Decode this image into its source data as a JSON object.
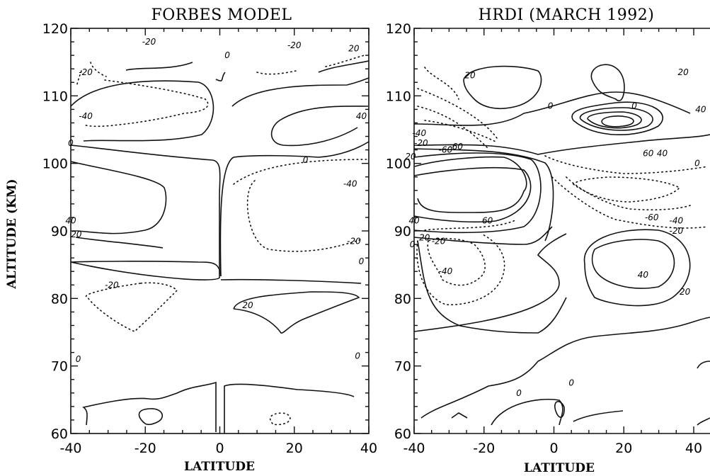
{
  "chart_data": [
    {
      "type": "contour",
      "title": "FORBES MODEL",
      "xlabel": "LATITUDE",
      "ylabel": "ALTITUDE (KM)",
      "xlim": [
        -40,
        40
      ],
      "ylim": [
        60,
        120
      ],
      "xticks": [
        "-40",
        "-20",
        "0",
        "20",
        "40"
      ],
      "yticks": [
        "60",
        "70",
        "80",
        "90",
        "100",
        "110",
        "120"
      ],
      "contour_labels": [
        {
          "text": "-20",
          "lat": -19,
          "alt": 118
        },
        {
          "text": "-20",
          "lat": -36,
          "alt": 113.5
        },
        {
          "text": "0",
          "lat": 2,
          "alt": 116
        },
        {
          "text": "-20",
          "lat": 20,
          "alt": 117.5
        },
        {
          "text": "20",
          "lat": 36,
          "alt": 117
        },
        {
          "text": "-40",
          "lat": -36,
          "alt": 107
        },
        {
          "text": "40",
          "lat": 38,
          "alt": 107
        },
        {
          "text": "0",
          "lat": -40,
          "alt": 103
        },
        {
          "text": "0",
          "lat": 23,
          "alt": 100.5
        },
        {
          "text": "-40",
          "lat": 35,
          "alt": 97
        },
        {
          "text": "40",
          "lat": -40,
          "alt": 91.5
        },
        {
          "text": "20",
          "lat": -38.5,
          "alt": 89.5
        },
        {
          "text": "-20",
          "lat": 36,
          "alt": 88.5
        },
        {
          "text": "0",
          "lat": 38,
          "alt": 85.5
        },
        {
          "text": "-20",
          "lat": -29,
          "alt": 82
        },
        {
          "text": "20",
          "lat": 7.5,
          "alt": 79
        },
        {
          "text": "0",
          "lat": -38,
          "alt": 71
        },
        {
          "text": "0",
          "lat": 37,
          "alt": 71.5
        }
      ]
    },
    {
      "type": "contour",
      "title": "HRDI (MARCH 1992)",
      "xlabel": "LATITUDE",
      "ylabel": "",
      "xlim": [
        -40,
        40
      ],
      "ylim": [
        60,
        120
      ],
      "xticks": [
        "-40",
        "-20",
        "0",
        "20",
        "40"
      ],
      "yticks": [
        "60",
        "70",
        "80",
        "90",
        "100",
        "110",
        "120"
      ],
      "contour_labels": [
        {
          "text": "20",
          "lat": -24,
          "alt": 113
        },
        {
          "text": "0",
          "lat": -1,
          "alt": 108.5
        },
        {
          "text": "20",
          "lat": 37,
          "alt": 113.5
        },
        {
          "text": "0",
          "lat": 23,
          "alt": 108.5
        },
        {
          "text": "40",
          "lat": 42,
          "alt": 108
        },
        {
          "text": "-40",
          "lat": -38.5,
          "alt": 104.5
        },
        {
          "text": "-20",
          "lat": -38,
          "alt": 103
        },
        {
          "text": "-60",
          "lat": -28,
          "alt": 102.5
        },
        {
          "text": "-60",
          "lat": -31,
          "alt": 102
        },
        {
          "text": "20",
          "lat": -41,
          "alt": 101
        },
        {
          "text": "60",
          "lat": 27,
          "alt": 101.5
        },
        {
          "text": "40",
          "lat": 31,
          "alt": 101.5
        },
        {
          "text": "0",
          "lat": 41,
          "alt": 100
        },
        {
          "text": "-60",
          "lat": 28,
          "alt": 92
        },
        {
          "text": "-40",
          "lat": 35,
          "alt": 91.5
        },
        {
          "text": "-20",
          "lat": 35,
          "alt": 90
        },
        {
          "text": "40",
          "lat": -40,
          "alt": 91.5
        },
        {
          "text": "60",
          "lat": -19,
          "alt": 91.5
        },
        {
          "text": "20",
          "lat": -37,
          "alt": 89
        },
        {
          "text": "0",
          "lat": -40.5,
          "alt": 88
        },
        {
          "text": "-20",
          "lat": -33,
          "alt": 88.5
        },
        {
          "text": "-40",
          "lat": -31,
          "alt": 84
        },
        {
          "text": "40",
          "lat": 25.5,
          "alt": 83.5
        },
        {
          "text": "20",
          "lat": 37.5,
          "alt": 81
        },
        {
          "text": "0",
          "lat": -10,
          "alt": 66
        },
        {
          "text": "0",
          "lat": 5,
          "alt": 67.5
        }
      ]
    }
  ]
}
